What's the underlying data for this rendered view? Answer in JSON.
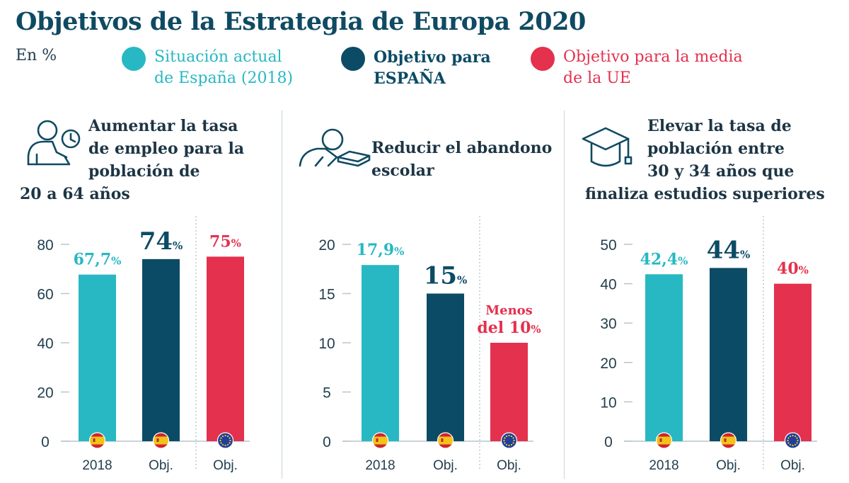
{
  "title": "Objetivos de la Estrategia de Europa 2020",
  "unit": "En %",
  "legend": [
    {
      "label": "Situación actual de España (2018)",
      "line1": "Situación actual",
      "line2": "de España (2018)",
      "color": "#27b8c3",
      "bold": false
    },
    {
      "label": "Objetivo para ESPAÑA",
      "line1": "Objetivo para",
      "line2": "ESPAÑA",
      "color": "#0b4b66",
      "bold": true
    },
    {
      "label": "Objetivo para la media de la UE",
      "line1": "Objetivo para la media",
      "line2": "de la UE",
      "color": "#e3314e",
      "bold": false
    }
  ],
  "colors": {
    "actual": "#27b8c3",
    "spain": "#0b4b66",
    "eu": "#e3314e",
    "axis": "#b9c5cb",
    "tick": "#23404f"
  },
  "chart_data": [
    {
      "type": "bar",
      "heading": [
        "Aumentar la tasa",
        "de empleo para la",
        "población de",
        "20 a 64 años"
      ],
      "icon": "person-clock-icon",
      "categories": [
        "2018",
        "Obj.",
        "Obj."
      ],
      "values": [
        67.7,
        74,
        75
      ],
      "labels": [
        [
          "67,7",
          "%"
        ],
        [
          "74",
          "%"
        ],
        [
          "75",
          "%"
        ]
      ],
      "ylim": [
        0,
        80
      ],
      "yticks": [
        0,
        20,
        40,
        60,
        80
      ],
      "flags": [
        "spain-flag-icon",
        "spain-flag-icon",
        "eu-flag-icon"
      ]
    },
    {
      "type": "bar",
      "heading": [
        "Reducir el abandono",
        "escolar"
      ],
      "icon": "student-book-icon",
      "categories": [
        "2018",
        "Obj.",
        "Obj."
      ],
      "values": [
        17.9,
        15,
        10
      ],
      "labels": [
        [
          "17,9",
          "%"
        ],
        [
          "15",
          "%"
        ],
        [
          "del 10",
          "%"
        ]
      ],
      "label_prefix": [
        null,
        null,
        "Menos"
      ],
      "ylim": [
        0,
        20
      ],
      "yticks": [
        0,
        5,
        10,
        15,
        20
      ],
      "flags": [
        "spain-flag-icon",
        "spain-flag-icon",
        "eu-flag-icon"
      ]
    },
    {
      "type": "bar",
      "heading": [
        "Elevar la tasa de",
        "población entre",
        "30 y 34 años que",
        "finaliza estudios superiores"
      ],
      "icon": "graduation-cap-icon",
      "categories": [
        "2018",
        "Obj.",
        "Obj."
      ],
      "values": [
        42.4,
        44,
        40
      ],
      "labels": [
        [
          "42,4",
          "%"
        ],
        [
          "44",
          "%"
        ],
        [
          "40",
          "%"
        ]
      ],
      "ylim": [
        0,
        50
      ],
      "yticks": [
        0,
        10,
        20,
        30,
        40,
        50
      ],
      "flags": [
        "spain-flag-icon",
        "spain-flag-icon",
        "eu-flag-icon"
      ]
    }
  ]
}
